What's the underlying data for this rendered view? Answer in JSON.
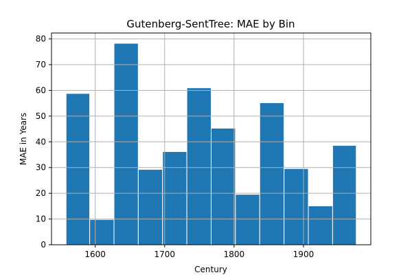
{
  "chart_data": {
    "type": "bar",
    "title": "Gutenberg-SentTree: MAE by Bin",
    "xlabel": "Century",
    "ylabel": "MAE in Years",
    "bins": [
      {
        "start": 1558,
        "end": 1592,
        "value": 58.8
      },
      {
        "start": 1592,
        "end": 1627,
        "value": 9.8
      },
      {
        "start": 1627,
        "end": 1662,
        "value": 78.3
      },
      {
        "start": 1662,
        "end": 1697,
        "value": 29.3
      },
      {
        "start": 1697,
        "end": 1732,
        "value": 36.2
      },
      {
        "start": 1732,
        "end": 1767,
        "value": 61.0
      },
      {
        "start": 1767,
        "end": 1802,
        "value": 45.3
      },
      {
        "start": 1802,
        "end": 1837,
        "value": 19.6
      },
      {
        "start": 1837,
        "end": 1872,
        "value": 55.2
      },
      {
        "start": 1872,
        "end": 1907,
        "value": 29.6
      },
      {
        "start": 1907,
        "end": 1942,
        "value": 15.1
      },
      {
        "start": 1942,
        "end": 1976,
        "value": 38.6
      }
    ],
    "x_ticks": [
      "1600",
      "1700",
      "1800",
      "1900"
    ],
    "y_ticks": [
      "0",
      "10",
      "20",
      "30",
      "40",
      "50",
      "60",
      "70",
      "80"
    ],
    "xlim": [
      1537,
      1997
    ],
    "ylim": [
      0,
      82.3
    ],
    "grid": true,
    "bar_color": "#1f77b4",
    "bar_edge_color": "#ffffff"
  }
}
